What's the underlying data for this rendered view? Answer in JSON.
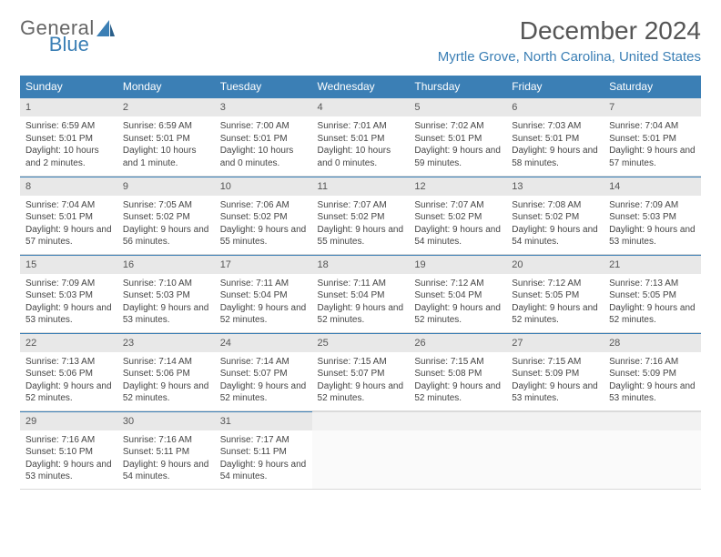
{
  "logo": {
    "part1": "General",
    "part2": "Blue"
  },
  "title": "December 2024",
  "location": "Myrtle Grove, North Carolina, United States",
  "colors": {
    "accent": "#3b7fb5",
    "header_text": "#555",
    "daynum_bg": "#e8e8e8",
    "body_text": "#444"
  },
  "weekdays": [
    "Sunday",
    "Monday",
    "Tuesday",
    "Wednesday",
    "Thursday",
    "Friday",
    "Saturday"
  ],
  "weeks": [
    [
      {
        "n": "1",
        "sr": "6:59 AM",
        "ss": "5:01 PM",
        "dl": "10 hours and 2 minutes."
      },
      {
        "n": "2",
        "sr": "6:59 AM",
        "ss": "5:01 PM",
        "dl": "10 hours and 1 minute."
      },
      {
        "n": "3",
        "sr": "7:00 AM",
        "ss": "5:01 PM",
        "dl": "10 hours and 0 minutes."
      },
      {
        "n": "4",
        "sr": "7:01 AM",
        "ss": "5:01 PM",
        "dl": "10 hours and 0 minutes."
      },
      {
        "n": "5",
        "sr": "7:02 AM",
        "ss": "5:01 PM",
        "dl": "9 hours and 59 minutes."
      },
      {
        "n": "6",
        "sr": "7:03 AM",
        "ss": "5:01 PM",
        "dl": "9 hours and 58 minutes."
      },
      {
        "n": "7",
        "sr": "7:04 AM",
        "ss": "5:01 PM",
        "dl": "9 hours and 57 minutes."
      }
    ],
    [
      {
        "n": "8",
        "sr": "7:04 AM",
        "ss": "5:01 PM",
        "dl": "9 hours and 57 minutes."
      },
      {
        "n": "9",
        "sr": "7:05 AM",
        "ss": "5:02 PM",
        "dl": "9 hours and 56 minutes."
      },
      {
        "n": "10",
        "sr": "7:06 AM",
        "ss": "5:02 PM",
        "dl": "9 hours and 55 minutes."
      },
      {
        "n": "11",
        "sr": "7:07 AM",
        "ss": "5:02 PM",
        "dl": "9 hours and 55 minutes."
      },
      {
        "n": "12",
        "sr": "7:07 AM",
        "ss": "5:02 PM",
        "dl": "9 hours and 54 minutes."
      },
      {
        "n": "13",
        "sr": "7:08 AM",
        "ss": "5:02 PM",
        "dl": "9 hours and 54 minutes."
      },
      {
        "n": "14",
        "sr": "7:09 AM",
        "ss": "5:03 PM",
        "dl": "9 hours and 53 minutes."
      }
    ],
    [
      {
        "n": "15",
        "sr": "7:09 AM",
        "ss": "5:03 PM",
        "dl": "9 hours and 53 minutes."
      },
      {
        "n": "16",
        "sr": "7:10 AM",
        "ss": "5:03 PM",
        "dl": "9 hours and 53 minutes."
      },
      {
        "n": "17",
        "sr": "7:11 AM",
        "ss": "5:04 PM",
        "dl": "9 hours and 52 minutes."
      },
      {
        "n": "18",
        "sr": "7:11 AM",
        "ss": "5:04 PM",
        "dl": "9 hours and 52 minutes."
      },
      {
        "n": "19",
        "sr": "7:12 AM",
        "ss": "5:04 PM",
        "dl": "9 hours and 52 minutes."
      },
      {
        "n": "20",
        "sr": "7:12 AM",
        "ss": "5:05 PM",
        "dl": "9 hours and 52 minutes."
      },
      {
        "n": "21",
        "sr": "7:13 AM",
        "ss": "5:05 PM",
        "dl": "9 hours and 52 minutes."
      }
    ],
    [
      {
        "n": "22",
        "sr": "7:13 AM",
        "ss": "5:06 PM",
        "dl": "9 hours and 52 minutes."
      },
      {
        "n": "23",
        "sr": "7:14 AM",
        "ss": "5:06 PM",
        "dl": "9 hours and 52 minutes."
      },
      {
        "n": "24",
        "sr": "7:14 AM",
        "ss": "5:07 PM",
        "dl": "9 hours and 52 minutes."
      },
      {
        "n": "25",
        "sr": "7:15 AM",
        "ss": "5:07 PM",
        "dl": "9 hours and 52 minutes."
      },
      {
        "n": "26",
        "sr": "7:15 AM",
        "ss": "5:08 PM",
        "dl": "9 hours and 52 minutes."
      },
      {
        "n": "27",
        "sr": "7:15 AM",
        "ss": "5:09 PM",
        "dl": "9 hours and 53 minutes."
      },
      {
        "n": "28",
        "sr": "7:16 AM",
        "ss": "5:09 PM",
        "dl": "9 hours and 53 minutes."
      }
    ],
    [
      {
        "n": "29",
        "sr": "7:16 AM",
        "ss": "5:10 PM",
        "dl": "9 hours and 53 minutes."
      },
      {
        "n": "30",
        "sr": "7:16 AM",
        "ss": "5:11 PM",
        "dl": "9 hours and 54 minutes."
      },
      {
        "n": "31",
        "sr": "7:17 AM",
        "ss": "5:11 PM",
        "dl": "9 hours and 54 minutes."
      },
      null,
      null,
      null,
      null
    ]
  ],
  "labels": {
    "sunrise": "Sunrise: ",
    "sunset": "Sunset: ",
    "daylight": "Daylight: "
  }
}
